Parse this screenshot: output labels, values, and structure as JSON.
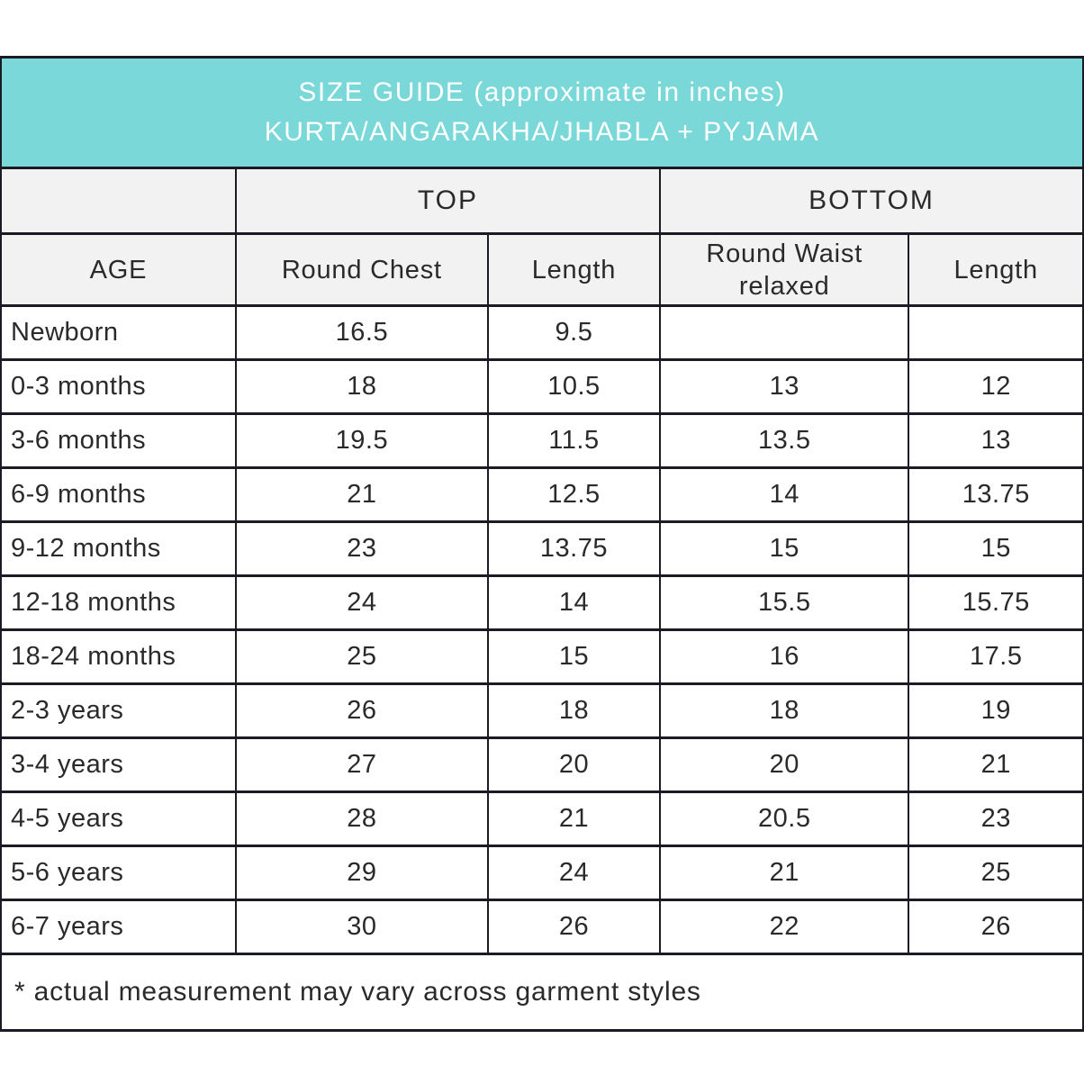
{
  "banner": {
    "line1": "SIZE GUIDE (approximate in inches)",
    "line2": "KURTA/ANGARAKHA/JHABLA + PYJAMA"
  },
  "table": {
    "group_headers": {
      "age_spacer": "",
      "top": "TOP",
      "bottom": "BOTTOM"
    },
    "column_headers": {
      "age": "AGE",
      "round_chest": "Round Chest",
      "top_length": "Length",
      "round_waist": "Round Waist relaxed",
      "bottom_length": "Length"
    },
    "rows": [
      [
        "Newborn",
        "16.5",
        "9.5",
        "",
        ""
      ],
      [
        "0-3 months",
        "18",
        "10.5",
        "13",
        "12"
      ],
      [
        "3-6 months",
        "19.5",
        "11.5",
        "13.5",
        "13"
      ],
      [
        "6-9 months",
        "21",
        "12.5",
        "14",
        "13.75"
      ],
      [
        "9-12 months",
        "23",
        "13.75",
        "15",
        "15"
      ],
      [
        "12-18 months",
        "24",
        "14",
        "15.5",
        "15.75"
      ],
      [
        "18-24 months",
        "25",
        "15",
        "16",
        "17.5"
      ],
      [
        "2-3 years",
        "26",
        "18",
        "18",
        "19"
      ],
      [
        "3-4 years",
        "27",
        "20",
        "20",
        "21"
      ],
      [
        "4-5 years",
        "28",
        "21",
        "20.5",
        "23"
      ],
      [
        "5-6 years",
        "29",
        "24",
        "21",
        "25"
      ],
      [
        "6-7 years",
        "30",
        "26",
        "22",
        "26"
      ]
    ],
    "footnote": "* actual measurement may vary across garment styles"
  },
  "colors": {
    "banner_bg": "#7ad8d8",
    "banner_text": "#ffffff",
    "header_bg": "#f2f2f2",
    "border": "#1b1b26",
    "text": "#2a2a2a"
  }
}
